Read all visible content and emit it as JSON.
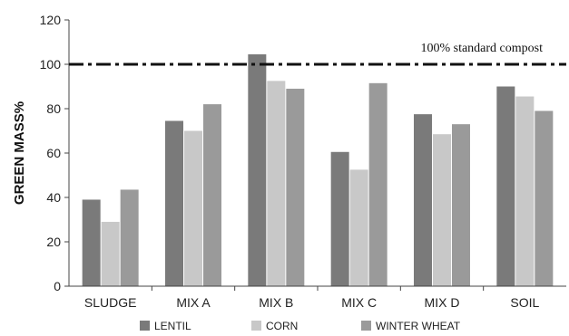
{
  "chart_data": {
    "type": "bar",
    "title": "",
    "xlabel": "",
    "ylabel": "GREEN MASS%",
    "ylim": [
      0,
      120
    ],
    "yticks": [
      0,
      20,
      40,
      60,
      80,
      100,
      120
    ],
    "categories": [
      "SLUDGE",
      "MIX A",
      "MIX B",
      "MIX C",
      "MIX D",
      "SOIL"
    ],
    "series": [
      {
        "name": "LENTIL",
        "color": "#7a7a7a",
        "values": [
          39,
          74.5,
          104.5,
          60.5,
          77.5,
          90
        ]
      },
      {
        "name": "CORN",
        "color": "#c8c8c8",
        "values": [
          29,
          70,
          92.5,
          52.5,
          68.5,
          85.5
        ]
      },
      {
        "name": "WINTER WHEAT",
        "color": "#9a9a9a",
        "values": [
          43.5,
          82,
          89,
          91.5,
          73,
          79
        ]
      }
    ],
    "reference_line": {
      "value": 100,
      "label": "100% standard compost",
      "style": "dash-dot"
    },
    "grid": false,
    "legend_position": "bottom"
  }
}
